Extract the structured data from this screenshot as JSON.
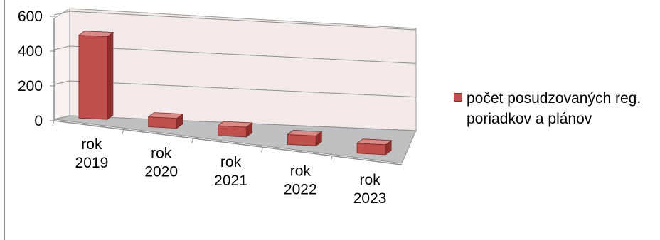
{
  "chart_data": {
    "type": "bar",
    "style": "3d-column",
    "categories": [
      "rok 2019",
      "rok 2020",
      "rok 2021",
      "rok 2022",
      "rok 2023"
    ],
    "series": [
      {
        "name": "počet posudzovaných reg. poriadkov a plánov",
        "values": [
          480,
          50,
          45,
          20,
          20
        ],
        "color": "#c0504d"
      }
    ],
    "y_ticks": [
      "0",
      "200",
      "400",
      "600"
    ],
    "ylim": [
      0,
      600
    ],
    "grid": true,
    "legend_position": "right",
    "colors": {
      "bar": "#c0504d",
      "bar_top": "#d98b88",
      "bar_side": "#8e2f2c",
      "floor": "#bfbfbf",
      "wall": "#f3e9e9"
    }
  }
}
